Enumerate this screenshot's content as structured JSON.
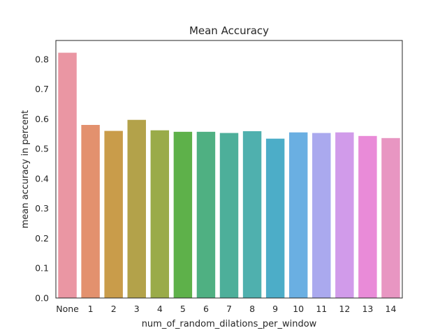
{
  "chart_data": {
    "type": "bar",
    "title": "Mean Accuracy",
    "xlabel": "num_of_random_dilations_per_window",
    "ylabel": "mean accuracy in percent",
    "categories": [
      "None",
      "1",
      "2",
      "3",
      "4",
      "5",
      "6",
      "7",
      "8",
      "9",
      "10",
      "11",
      "12",
      "13",
      "14"
    ],
    "values": [
      0.822,
      0.58,
      0.56,
      0.597,
      0.562,
      0.557,
      0.557,
      0.553,
      0.559,
      0.534,
      0.555,
      0.553,
      0.555,
      0.543,
      0.536
    ],
    "colors": [
      "#ea96a3",
      "#e3916e",
      "#c99c4a",
      "#b3a24a",
      "#9aab49",
      "#5eb14a",
      "#4fb082",
      "#4daf9a",
      "#4fb0ae",
      "#4cadc8",
      "#6aafe2",
      "#aaa9ee",
      "#d19bea",
      "#e98bd8",
      "#e896c2"
    ],
    "yticks": [
      "0.0",
      "0.1",
      "0.2",
      "0.3",
      "0.4",
      "0.5",
      "0.6",
      "0.7",
      "0.8"
    ],
    "ylim": [
      0,
      0.863
    ],
    "grid": false,
    "legend": "none"
  }
}
